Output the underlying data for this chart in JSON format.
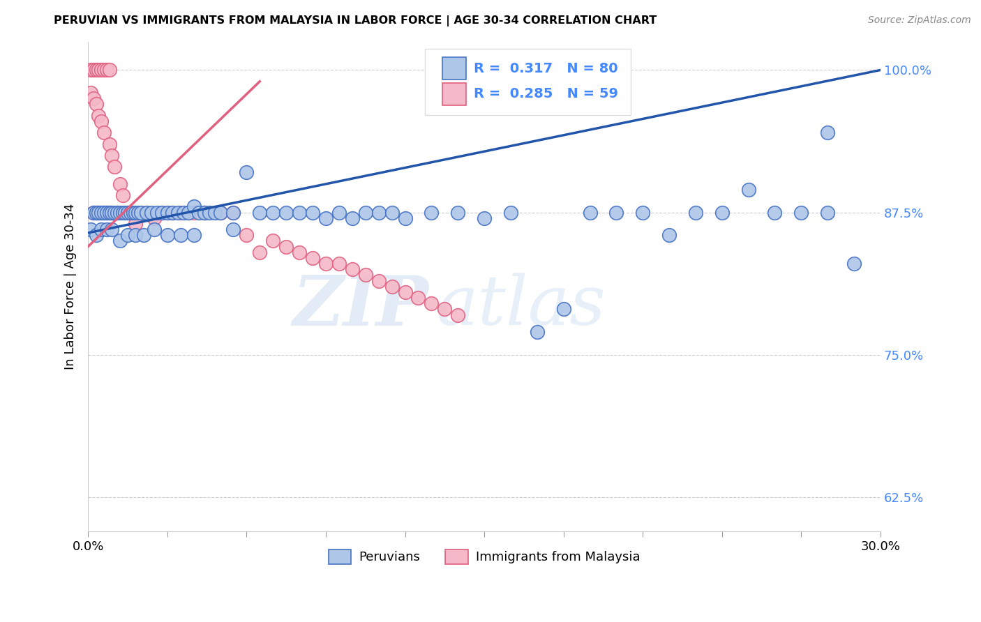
{
  "title": "PERUVIAN VS IMMIGRANTS FROM MALAYSIA IN LABOR FORCE | AGE 30-34 CORRELATION CHART",
  "source": "Source: ZipAtlas.com",
  "ylabel": "In Labor Force | Age 30-34",
  "xlim": [
    0.0,
    0.3
  ],
  "ylim": [
    0.595,
    1.025
  ],
  "ytick_labels": [
    "62.5%",
    "75.0%",
    "87.5%",
    "100.0%"
  ],
  "ytick_values": [
    0.625,
    0.75,
    0.875,
    1.0
  ],
  "blue_color": "#aec6e8",
  "blue_edge_color": "#4472c4",
  "blue_line_color": "#2255aa",
  "pink_color": "#f5b8c8",
  "pink_edge_color": "#e06080",
  "pink_line_color": "#e06080",
  "R_blue": "0.317",
  "N_blue": "80",
  "R_pink": "0.285",
  "N_pink": "59",
  "legend_label_blue": "Peruvians",
  "legend_label_pink": "Immigrants from Malaysia",
  "watermark_zip": "ZIP",
  "watermark_atlas": "atlas",
  "blue_line_x": [
    0.0,
    0.3
  ],
  "blue_line_y": [
    0.857,
    1.0
  ],
  "pink_line_x": [
    0.0,
    0.065
  ],
  "pink_line_y": [
    0.845,
    0.99
  ],
  "blue_x": [
    0.002,
    0.003,
    0.004,
    0.005,
    0.006,
    0.007,
    0.008,
    0.009,
    0.01,
    0.011,
    0.012,
    0.013,
    0.014,
    0.015,
    0.016,
    0.017,
    0.018,
    0.019,
    0.02,
    0.022,
    0.024,
    0.026,
    0.028,
    0.03,
    0.032,
    0.034,
    0.036,
    0.038,
    0.04,
    0.042,
    0.044,
    0.046,
    0.048,
    0.05,
    0.055,
    0.06,
    0.065,
    0.07,
    0.075,
    0.08,
    0.085,
    0.09,
    0.095,
    0.1,
    0.105,
    0.11,
    0.115,
    0.12,
    0.13,
    0.14,
    0.15,
    0.16,
    0.17,
    0.18,
    0.19,
    0.2,
    0.21,
    0.22,
    0.23,
    0.24,
    0.25,
    0.26,
    0.27,
    0.28,
    0.001,
    0.003,
    0.005,
    0.007,
    0.009,
    0.012,
    0.015,
    0.018,
    0.021,
    0.025,
    0.03,
    0.035,
    0.04,
    0.055,
    0.28,
    0.29
  ],
  "blue_y": [
    0.875,
    0.875,
    0.875,
    0.875,
    0.875,
    0.875,
    0.875,
    0.875,
    0.875,
    0.875,
    0.875,
    0.875,
    0.875,
    0.875,
    0.875,
    0.875,
    0.875,
    0.875,
    0.875,
    0.875,
    0.875,
    0.875,
    0.875,
    0.875,
    0.875,
    0.875,
    0.875,
    0.875,
    0.88,
    0.875,
    0.875,
    0.875,
    0.875,
    0.875,
    0.875,
    0.91,
    0.875,
    0.875,
    0.875,
    0.875,
    0.875,
    0.87,
    0.875,
    0.87,
    0.875,
    0.875,
    0.875,
    0.87,
    0.875,
    0.875,
    0.87,
    0.875,
    0.77,
    0.79,
    0.875,
    0.875,
    0.875,
    0.855,
    0.875,
    0.875,
    0.895,
    0.875,
    0.875,
    0.875,
    0.86,
    0.855,
    0.86,
    0.86,
    0.86,
    0.85,
    0.855,
    0.855,
    0.855,
    0.86,
    0.855,
    0.855,
    0.855,
    0.86,
    0.945,
    0.83
  ],
  "pink_x": [
    0.001,
    0.002,
    0.003,
    0.004,
    0.005,
    0.006,
    0.007,
    0.008,
    0.001,
    0.002,
    0.003,
    0.004,
    0.005,
    0.006,
    0.008,
    0.009,
    0.01,
    0.012,
    0.013,
    0.015,
    0.018,
    0.02,
    0.022,
    0.025,
    0.028,
    0.03,
    0.032,
    0.035,
    0.038,
    0.04,
    0.044,
    0.05,
    0.055,
    0.06,
    0.065,
    0.07,
    0.075,
    0.08,
    0.085,
    0.09,
    0.095,
    0.1,
    0.105,
    0.11,
    0.115,
    0.12,
    0.125,
    0.13,
    0.135,
    0.14,
    0.002,
    0.003,
    0.004,
    0.005,
    0.006,
    0.007,
    0.008,
    0.009,
    0.011
  ],
  "pink_y": [
    1.0,
    1.0,
    1.0,
    1.0,
    1.0,
    1.0,
    1.0,
    1.0,
    0.98,
    0.975,
    0.97,
    0.96,
    0.955,
    0.945,
    0.935,
    0.925,
    0.915,
    0.9,
    0.89,
    0.875,
    0.865,
    0.875,
    0.875,
    0.87,
    0.875,
    0.875,
    0.875,
    0.875,
    0.875,
    0.875,
    0.875,
    0.875,
    0.875,
    0.855,
    0.84,
    0.85,
    0.845,
    0.84,
    0.835,
    0.83,
    0.83,
    0.825,
    0.82,
    0.815,
    0.81,
    0.805,
    0.8,
    0.795,
    0.79,
    0.785,
    0.875,
    0.875,
    0.875,
    0.875,
    0.875,
    0.875,
    0.875,
    0.875,
    0.875
  ]
}
